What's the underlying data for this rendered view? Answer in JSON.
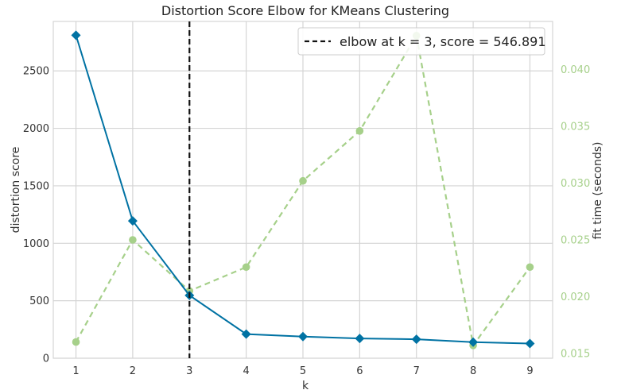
{
  "chart_data": {
    "type": "line",
    "title": "Distortion Score Elbow for KMeans Clustering",
    "xlabel": "k",
    "ylabel": "distortion score",
    "y2label": "fit time (seconds)",
    "x": [
      1,
      2,
      3,
      4,
      5,
      6,
      7,
      8,
      9
    ],
    "xlim": [
      0.6,
      9.4
    ],
    "ylim": [
      0,
      2930
    ],
    "y2lim": [
      0.01457,
      0.04425
    ],
    "xticks": [
      "1",
      "2",
      "3",
      "4",
      "5",
      "6",
      "7",
      "8",
      "9"
    ],
    "yticks": [
      "0",
      "500",
      "1000",
      "1500",
      "2000",
      "2500"
    ],
    "y2ticks": [
      "0.015",
      "0.020",
      "0.025",
      "0.030",
      "0.035",
      "0.040"
    ],
    "grid": true,
    "legend_position": "top-right",
    "series": [
      {
        "axis": "left",
        "color": "#0072a3",
        "marker": "diamond",
        "values": [
          2810,
          1195,
          546.891,
          210,
          188,
          172,
          165,
          140,
          128
        ]
      },
      {
        "axis": "right",
        "color": "#a6d08a",
        "marker": "circle",
        "dashed": true,
        "values": [
          0.016,
          0.025,
          0.0205,
          0.0226,
          0.0302,
          0.0346,
          0.043,
          0.0157,
          0.0226
        ]
      }
    ],
    "elbow": {
      "k": 3,
      "score": "546.891",
      "legend_label": "elbow at k = 3, score = 546.891",
      "color": "#111111"
    }
  }
}
